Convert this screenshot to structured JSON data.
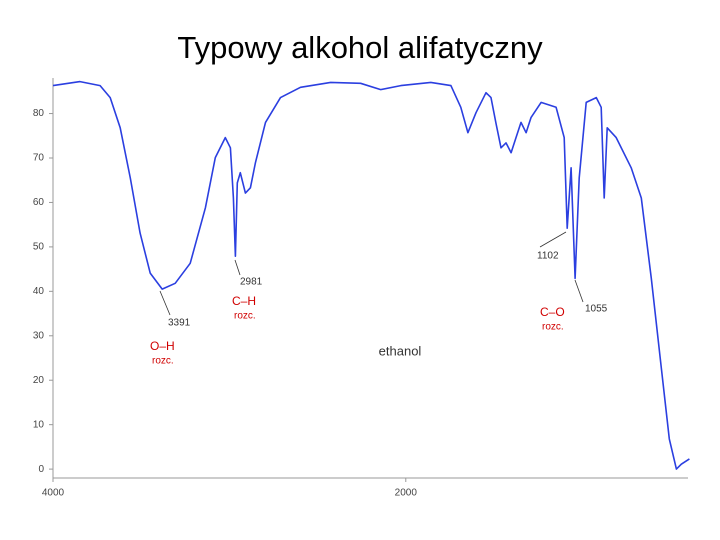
{
  "chart_data": {
    "type": "line",
    "title": "Typowy alkohol alifatyczny",
    "label": "ethanol",
    "xlim": [
      4000,
      400
    ],
    "xticks": [
      4000,
      2000
    ],
    "ylim": [
      -2,
      88
    ],
    "yticks": [
      0,
      10,
      20,
      30,
      40,
      50,
      60,
      70,
      80
    ],
    "series": [
      {
        "color": "#2b3fe0",
        "x": [
          4000,
          3847,
          3733,
          3676,
          3619,
          3562,
          3506,
          3449,
          3381,
          3307,
          3222,
          3136,
          3080,
          3023,
          2994,
          2977,
          2966,
          2955,
          2938,
          2909,
          2881,
          2852,
          2795,
          2710,
          2597,
          2426,
          2256,
          2142,
          2028,
          1858,
          1744,
          1688,
          1648,
          1602,
          1545,
          1517,
          1489,
          1460,
          1432,
          1403,
          1375,
          1347,
          1318,
          1290,
          1233,
          1148,
          1102,
          1085,
          1063,
          1040,
          1017,
          977,
          920,
          892,
          875,
          858,
          807,
          722,
          665,
          608,
          551,
          506,
          466,
          438,
          392
        ],
        "values": [
          86.3,
          87.2,
          86.3,
          83.6,
          76.8,
          65.5,
          53.1,
          44.1,
          40.5,
          41.8,
          46.3,
          58.8,
          70.1,
          74.6,
          72.3,
          61,
          47.9,
          64.4,
          66.7,
          62.1,
          63.3,
          69,
          78,
          83.6,
          85.9,
          87,
          86.8,
          85.4,
          86.3,
          87,
          86.3,
          81.4,
          75.7,
          80.2,
          84.7,
          83.6,
          77.9,
          72.3,
          73.4,
          71.2,
          74.6,
          78,
          75.7,
          79.1,
          82.5,
          81.4,
          74.6,
          54.2,
          67.8,
          42.9,
          65.5,
          82.5,
          83.6,
          81.4,
          61,
          76.8,
          74.6,
          67.8,
          61,
          42.9,
          22.6,
          6.8,
          0,
          1.1,
          2.3
        ]
      }
    ],
    "annotations": [
      "3391",
      "2981",
      "1102",
      "1055"
    ],
    "bond_labels": [
      "O–H",
      "C–H",
      "C–O"
    ],
    "bond_notes": [
      "rozc.",
      "rozc.",
      "rozc."
    ]
  }
}
